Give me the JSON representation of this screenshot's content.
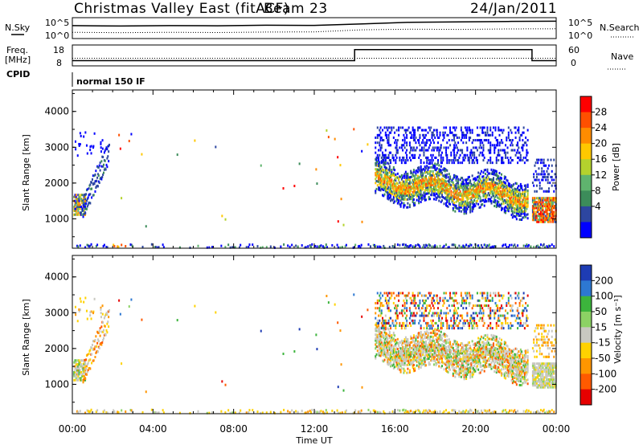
{
  "header": {
    "title": "Christmas Valley East (fitACF)",
    "beam": "Beam 23",
    "date": "24/Jan/2011"
  },
  "status_panels": {
    "nsky_label": "N.Sky",
    "nsearch_label": "N.Search",
    "freq_label_1": "Freq.",
    "freq_label_2": "[MHz]",
    "nave_label": "Nave",
    "cpid_label": "CPID",
    "cpid_value": "normal 150 IF",
    "noise_left_ticks": [
      "10^5",
      "10^0"
    ],
    "noise_right_ticks": [
      "10^5",
      "10^0"
    ],
    "freq_left_ticks": [
      "18",
      "8"
    ],
    "nave_right_ticks": [
      "60",
      "0"
    ]
  },
  "chart_data": [
    {
      "type": "heatmap",
      "panel": "power",
      "ylabel": "Slant Range [km]",
      "ylim": [
        180,
        4600
      ],
      "xlim_hours": [
        0,
        24
      ],
      "ytick_labels": [
        "1000",
        "2000",
        "3000",
        "4000"
      ],
      "colorbar_label": "Power [dB]",
      "colorbar_ticks": [
        "4",
        "8",
        "12",
        "16",
        "20",
        "24",
        "28"
      ],
      "colorbar_colors": [
        "#0000ff",
        "#2d46a0",
        "#3c8c5a",
        "#5fb46e",
        "#b4d22d",
        "#ffc800",
        "#ff8c00",
        "#ff5000",
        "#ff0000"
      ],
      "echo_regions": [
        {
          "t_start": 0.0,
          "t_end": 0.6,
          "r_min": 1200,
          "r_max": 1700,
          "dominant": "mixed 4-20 dB"
        },
        {
          "t_start": 0.5,
          "t_end": 1.8,
          "r_min": 1100,
          "r_max": 3400,
          "dominant": "4-8 dB"
        },
        {
          "t_start": 0.0,
          "t_end": 24.0,
          "r_min": 180,
          "r_max": 330,
          "dominant": "4-12 dB"
        },
        {
          "t_start": 15.0,
          "t_end": 22.6,
          "r_min": 1300,
          "r_max": 2500,
          "dominant": "8-20 dB"
        },
        {
          "t_start": 22.8,
          "t_end": 24.0,
          "r_min": 1000,
          "r_max": 1600,
          "dominant": "20-28 dB"
        },
        {
          "t_start": 15.0,
          "t_end": 23.0,
          "r_min": 2500,
          "r_max": 3600,
          "dominant": "4 dB"
        }
      ]
    },
    {
      "type": "heatmap",
      "panel": "velocity",
      "ylabel": "Slant Range [km]",
      "xlabel": "Time UT",
      "ylim": [
        180,
        4600
      ],
      "xlim_hours": [
        0,
        24
      ],
      "xtick_labels": [
        "00:00",
        "04:00",
        "08:00",
        "12:00",
        "16:00",
        "20:00",
        "00:00"
      ],
      "ytick_labels": [
        "1000",
        "2000",
        "3000",
        "4000"
      ],
      "colorbar_label": "Velocity [m s⁻¹]",
      "colorbar_ticks": [
        "200",
        "100",
        "50",
        "15",
        "-15",
        "-50",
        "-100",
        "-200"
      ],
      "colorbar_colors": [
        "#1e3cb4",
        "#2d78d2",
        "#3cb43c",
        "#8cd264",
        "#c8c8c0",
        "#ffd200",
        "#ff9600",
        "#ff5a00",
        "#e60000"
      ],
      "ground_scatter_color": "#c8c8c0"
    }
  ],
  "status_data": {
    "noise_sky_level": [
      0.62,
      0.6,
      0.62,
      0.61,
      0.64,
      0.63,
      0.7,
      0.78,
      0.8,
      0.82,
      0.83
    ],
    "noise_search_level": [
      0.3,
      0.28,
      0.3,
      0.29,
      0.31,
      0.32,
      0.42,
      0.45,
      0.44,
      0.46,
      0.47
    ],
    "freq_mhz_segments": [
      {
        "t_start": 0.0,
        "t_end": 14.0,
        "value": 10.5
      },
      {
        "t_start": 14.0,
        "t_end": 22.8,
        "value": 15.8
      },
      {
        "t_start": 22.8,
        "t_end": 24.0,
        "value": 10.5
      }
    ],
    "nave_level": 22
  }
}
